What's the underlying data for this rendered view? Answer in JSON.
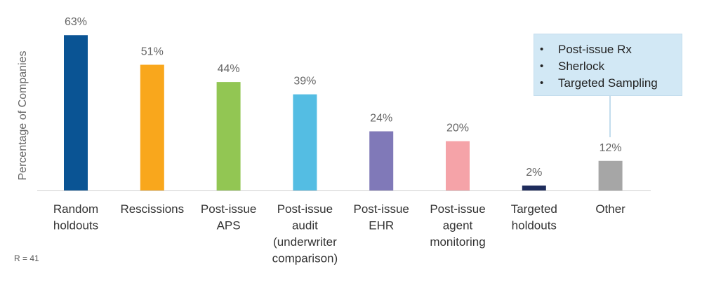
{
  "chart_data": {
    "type": "bar",
    "ylabel": "Percentage of Companies",
    "categories": [
      [
        "Random",
        "holdouts"
      ],
      [
        "Rescissions"
      ],
      [
        "Post-issue",
        "APS"
      ],
      [
        "Post-issue",
        "audit",
        "(underwriter",
        "comparison)"
      ],
      [
        "Post-issue",
        "EHR"
      ],
      [
        "Post-issue",
        "agent",
        "monitoring"
      ],
      [
        "Targeted",
        "holdouts"
      ],
      [
        "Other"
      ]
    ],
    "values": [
      63,
      51,
      44,
      39,
      24,
      20,
      2,
      12
    ],
    "value_labels": [
      "63%",
      "51%",
      "44%",
      "39%",
      "24%",
      "20%",
      "2%",
      "12%"
    ],
    "colors": [
      "#0a5494",
      "#f9a71c",
      "#92c653",
      "#54bde3",
      "#8079b8",
      "#f5a3a8",
      "#1e2c5c",
      "#a6a6a6"
    ],
    "ylim": [
      0,
      70
    ],
    "grid": false,
    "legend": "none",
    "annotation": {
      "attached_to": "Other",
      "items": [
        "Post-issue Rx",
        "Sherlock",
        "Targeted Sampling"
      ]
    }
  },
  "footnote": "R = 41"
}
